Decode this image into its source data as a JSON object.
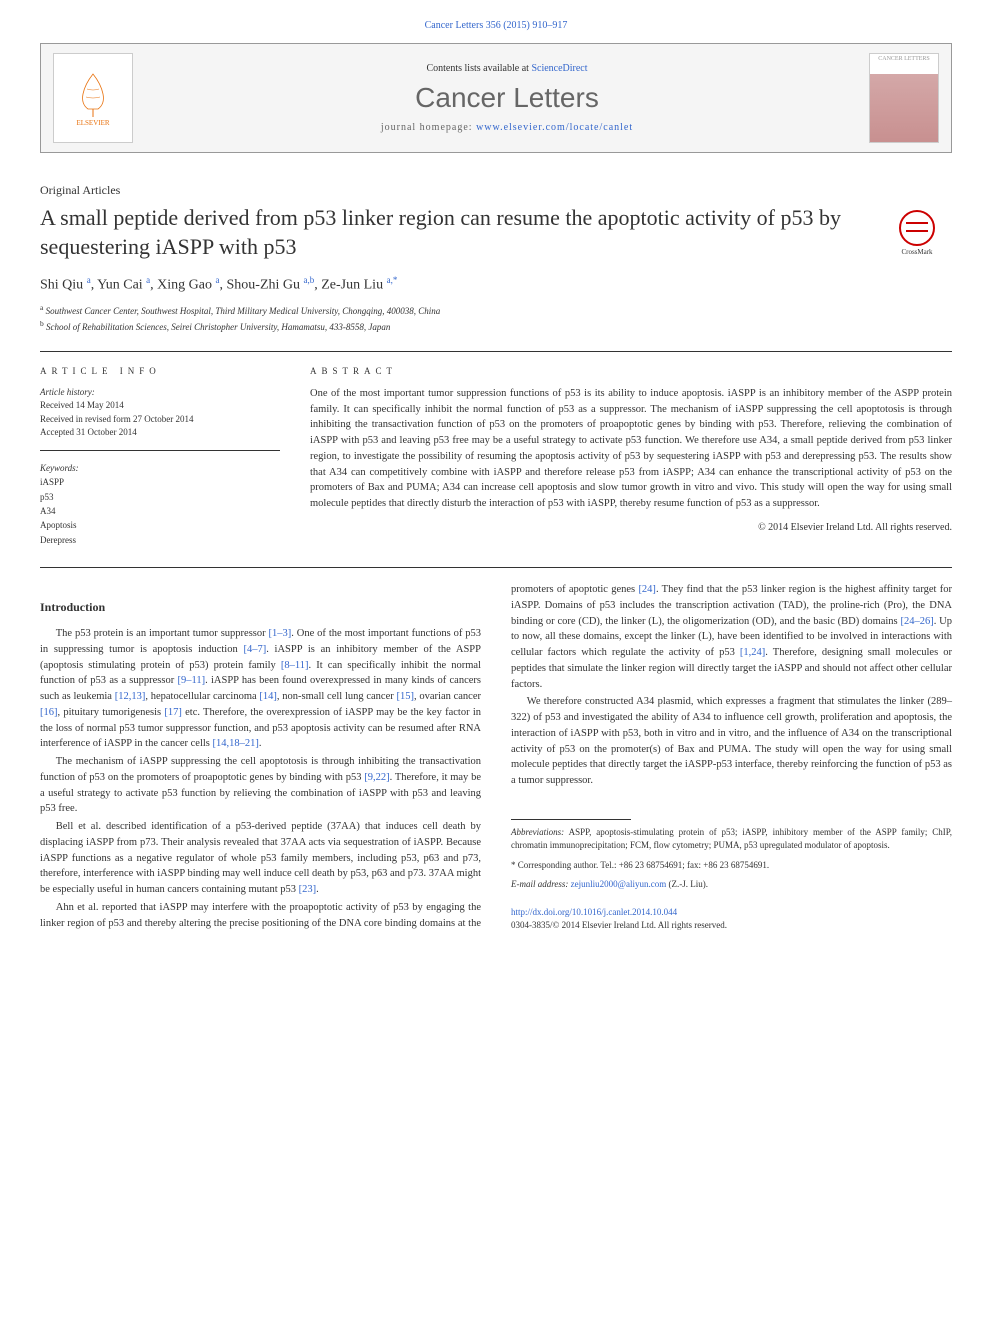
{
  "journal_ref": "Cancer Letters 356 (2015) 910–917",
  "header": {
    "contents_prefix": "Contents lists available at ",
    "sciencedirect": "ScienceDirect",
    "journal_title": "Cancer Letters",
    "homepage_prefix": "journal homepage: ",
    "homepage_url": "www.elsevier.com/locate/canlet",
    "elsevier_label": "ELSEVIER",
    "cover_label": "CANCER LETTERS"
  },
  "article_type": "Original Articles",
  "title": "A small peptide derived from p53 linker region can resume the apoptotic activity of p53 by sequestering iASPP with p53",
  "crossmark_label": "CrossMark",
  "authors_html": "Shi Qiu <sup>a</sup>, Yun Cai <sup>a</sup>, Xing Gao <sup>a</sup>, Shou-Zhi Gu <sup>a,b</sup>, Ze-Jun Liu <sup>a,*</sup>",
  "affiliations": [
    "a Southwest Cancer Center, Southwest Hospital, Third Military Medical University, Chongqing, 400038, China",
    "b School of Rehabilitation Sciences, Seirei Christopher University, Hamamatsu, 433-8558, Japan"
  ],
  "article_info": {
    "heading": "ARTICLE INFO",
    "history_label": "Article history:",
    "history": [
      "Received 14 May 2014",
      "Received in revised form 27 October 2014",
      "Accepted 31 October 2014"
    ],
    "keywords_label": "Keywords:",
    "keywords": [
      "iASPP",
      "p53",
      "A34",
      "Apoptosis",
      "Derepress"
    ]
  },
  "abstract": {
    "heading": "ABSTRACT",
    "text": "One of the most important tumor suppression functions of p53 is its ability to induce apoptosis. iASPP is an inhibitory member of the ASPP protein family. It can specifically inhibit the normal function of p53 as a suppressor. The mechanism of iASPP suppressing the cell apoptotosis is through inhibiting the transactivation function of p53 on the promoters of proapoptotic genes by binding with p53. Therefore, relieving the combination of iASPP with p53 and leaving p53 free may be a useful strategy to activate p53 function. We therefore use A34, a small peptide derived from p53 linker region, to investigate the possibility of resuming the apoptosis activity of p53 by sequestering iASPP with p53 and derepressing p53. The results show that A34 can competitively combine with iASPP and therefore release p53 from iASPP; A34 can enhance the transcriptional activity of p53 on the promoters of Bax and PUMA; A34 can increase cell apoptosis and slow tumor growth in vitro and vivo. This study will open the way for using small molecule peptides that directly disturb the interaction of p53 with iASPP, thereby resume function of p53 as a suppressor."
  },
  "copyright": "© 2014 Elsevier Ireland Ltd. All rights reserved.",
  "intro_heading": "Introduction",
  "paragraphs": [
    "The p53 protein is an important tumor suppressor <span class='citation'>[1–3]</span>. One of the most important functions of p53 in suppressing tumor is apoptosis induction <span class='citation'>[4–7]</span>. iASPP is an inhibitory member of the ASPP (apoptosis stimulating protein of p53) protein family <span class='citation'>[8–11]</span>. It can specifically inhibit the normal function of p53 as a suppressor <span class='citation'>[9–11]</span>. iASPP has been found overexpressed in many kinds of cancers such as leukemia <span class='citation'>[12,13]</span>, hepatocellular carcinoma <span class='citation'>[14]</span>, non-small cell lung cancer <span class='citation'>[15]</span>, ovarian cancer <span class='citation'>[16]</span>, pituitary tumorigenesis <span class='citation'>[17]</span> etc. Therefore, the overexpression of iASPP may be the key factor in the loss of normal p53 tumor suppressor function, and p53 apoptosis activity can be resumed after RNA interference of iASPP in the cancer cells <span class='citation'>[14,18–21]</span>.",
    "The mechanism of iASPP suppressing the cell apoptotosis is through inhibiting the transactivation function of p53 on the promoters of proapoptotic genes by binding with p53 <span class='citation'>[9,22]</span>. Therefore, it may be a useful strategy to activate p53 function by relieving the combination of iASPP with p53 and leaving p53 free.",
    "Bell et al. described identification of a p53-derived peptide (37AA) that induces cell death by displacing iASPP from p73. Their analysis revealed that 37AA acts via sequestration of iASPP. Because iASPP functions as a negative regulator of whole p53 family members, including p53, p63 and p73, therefore, interference with iASPP binding may well induce cell death by p53, p63 and p73. 37AA might be especially useful in human cancers containing mutant p53 <span class='citation'>[23]</span>.",
    "Ahn et al. reported that iASPP may interfere with the proapoptotic activity of p53 by engaging the linker region of p53 and thereby altering the precise positioning of the DNA core binding domains at the promoters of apoptotic genes <span class='citation'>[24]</span>. They find that the p53 linker region is the highest affinity target for iASPP. Domains of p53 includes the transcription activation (TAD), the proline-rich (Pro), the DNA binding or core (CD), the linker (L), the oligomerization (OD), and the basic (BD) domains <span class='citation'>[24–26]</span>. Up to now, all these domains, except the linker (L), have been identified to be involved in interactions with cellular factors which regulate the activity of p53 <span class='citation'>[1,24]</span>. Therefore, designing small molecules or peptides that simulate the linker region will directly target the iASPP and should not affect other cellular factors.",
    "We therefore constructed A34 plasmid, which expresses a fragment that stimulates the linker (289–322) of p53 and investigated the ability of A34 to influence cell growth, proliferation and apoptosis, the interaction of iASPP with p53, both in vitro and in vitro, and the influence of A34 on the transcriptional activity of p53 on the promoter(s) of Bax and PUMA. The study will open the way for using small molecule peptides that directly target the iASPP-p53 interface, thereby reinforcing the function of p53 as a tumor suppressor."
  ],
  "footer": {
    "abbrev_label": "Abbreviations:",
    "abbrev_text": " ASPP, apoptosis-stimulating protein of p53; iASPP, inhibitory member of the ASPP family; ChIP, chromatin immunoprecipitation; FCM, flow cytometry; PUMA, p53 upregulated modulator of apoptosis.",
    "corresponding": "* Corresponding author. Tel.: +86 23 68754691; fax: +86 23 68754691.",
    "email_label": "E-mail address:",
    "email": " zejunliu2000@aliyun.com",
    "email_name": " (Z.-J. Liu).",
    "doi": "http://dx.doi.org/10.1016/j.canlet.2014.10.044",
    "issn": "0304-3835/© 2014 Elsevier Ireland Ltd. All rights reserved."
  }
}
